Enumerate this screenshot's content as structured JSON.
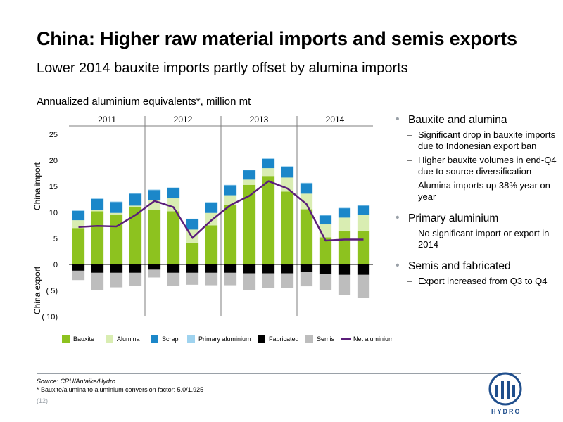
{
  "title": "China: Higher raw material imports and semis exports",
  "subtitle": "Lower 2014 bauxite imports partly offset by alumina imports",
  "chart_heading": "Annualized aluminium equivalents*, million mt",
  "chart_data": {
    "type": "bar",
    "stacked": true,
    "year_groups": [
      "2011",
      "2012",
      "2013",
      "2014"
    ],
    "quarters_per_year": 4,
    "ylabel_positive": "China import",
    "ylabel_negative": "China export",
    "ylim": [
      -10,
      25
    ],
    "y_ticks": [
      25,
      20,
      15,
      10,
      5,
      0,
      -5,
      -10
    ],
    "y_tick_labels": [
      "25",
      "20",
      "15",
      "10",
      "5",
      "0",
      "( 5)",
      "( 10)"
    ],
    "legend_position": "bottom",
    "series": [
      {
        "name": "Bauxite",
        "color": "#8dc21f",
        "values": [
          7.0,
          10.2,
          9.5,
          11.0,
          10.5,
          10.2,
          4.2,
          7.5,
          11.5,
          15.3,
          17.0,
          14.0,
          10.6,
          5.2,
          6.5,
          6.5
        ]
      },
      {
        "name": "Alumina",
        "color": "#d9edb2",
        "values": [
          1.5,
          0.3,
          0.4,
          0.3,
          1.8,
          2.5,
          2.5,
          2.4,
          1.8,
          1.0,
          1.5,
          2.7,
          3.0,
          2.5,
          2.5,
          3.0
        ]
      },
      {
        "name": "Scrap",
        "color": "#1b87c9",
        "values": [
          1.8,
          2.1,
          2.1,
          2.3,
          2.0,
          2.0,
          2.0,
          2.0,
          1.9,
          1.8,
          1.8,
          2.1,
          2.0,
          1.7,
          1.8,
          1.8
        ]
      },
      {
        "name": "Primary aluminium",
        "color": "#9fd3ef",
        "values": [
          0.1,
          0.1,
          0.1,
          0.1,
          0.1,
          0.1,
          0.1,
          0.1,
          0.1,
          0.1,
          0.1,
          0.1,
          0.1,
          0.1,
          0.1,
          0.1
        ]
      },
      {
        "name": "Fabricated",
        "color": "#000000",
        "values": [
          -1.2,
          -1.6,
          -1.6,
          -1.6,
          -1.0,
          -1.6,
          -1.6,
          -1.6,
          -1.6,
          -1.7,
          -1.7,
          -1.7,
          -1.5,
          -1.9,
          -2.0,
          -2.0
        ]
      },
      {
        "name": "Semis",
        "color": "#bdbdbd",
        "values": [
          -1.8,
          -3.3,
          -2.8,
          -2.5,
          -1.5,
          -2.5,
          -2.3,
          -2.4,
          -2.4,
          -3.3,
          -2.8,
          -2.8,
          -2.7,
          -3.1,
          -3.9,
          -4.4
        ]
      }
    ],
    "line_series": {
      "name": "Net aluminium imports",
      "color": "#5b1e7a",
      "values": [
        7.2,
        7.4,
        7.3,
        9.5,
        12.2,
        11.0,
        5.1,
        8.5,
        11.4,
        13.2,
        16.0,
        14.6,
        11.6,
        4.6,
        4.8,
        4.8
      ]
    }
  },
  "bullets": [
    {
      "heading": "Bauxite and alumina",
      "items": [
        "Significant drop in bauxite imports due to Indonesian export ban",
        "Higher bauxite volumes in end-Q4 due to source diversification",
        "Alumina imports up 38% year on year"
      ]
    },
    {
      "heading": "Primary aluminium",
      "items": [
        "No significant import or export in 2014"
      ]
    },
    {
      "heading": "Semis and fabricated",
      "items": [
        "Export increased from Q3 to Q4"
      ]
    }
  ],
  "footer": {
    "source": "Source: CRU/Antaike/Hydro",
    "note": "* Bauxite/alumina to aluminium conversion factor: 5.0/1.925",
    "page_number": "(12)"
  },
  "logo": {
    "text": "HYDRO",
    "color": "#1f4e8c"
  }
}
